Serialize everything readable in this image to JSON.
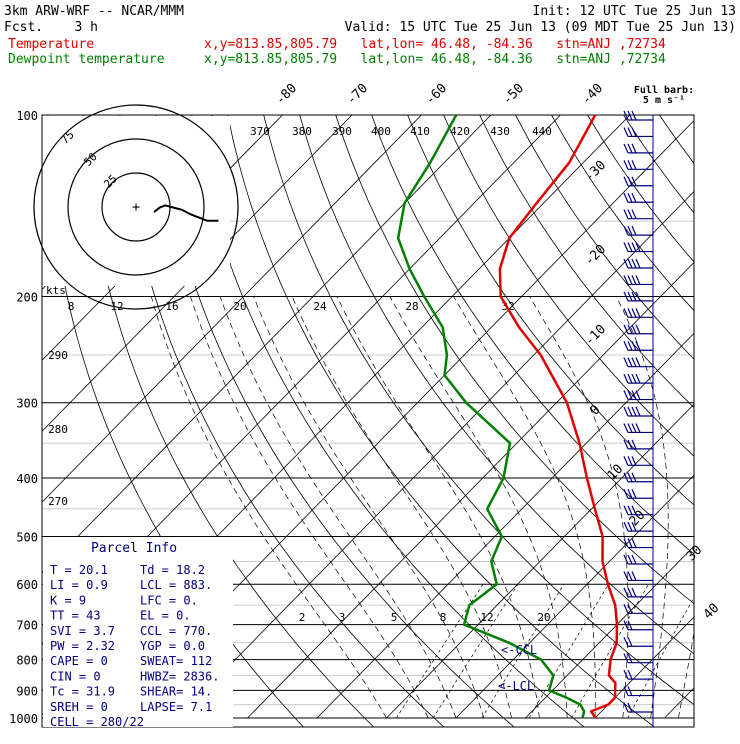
{
  "header": {
    "model": "3km ARW-WRF -- NCAR/MMM",
    "init": "Init: 12 UTC Tue 25 Jun 13",
    "fcst": "Fcst.    3 h",
    "valid": "Valid: 15 UTC Tue 25 Jun 13 (09 MDT Tue 25 Jun 13)",
    "temp_label": "Temperature",
    "temp_loc": "x,y=813.85,805.79   lat,lon= 46.48, -84.36   stn=ANJ ,72734",
    "dew_label": "Dewpoint temperature",
    "dew_loc": "x,y=813.85,805.79   lat,lon= 46.48, -84.36   stn=ANJ ,72734"
  },
  "colors": {
    "temperature": "#e00000",
    "dewpoint": "#008000",
    "panel_text": "#000080",
    "wind": "#000080"
  },
  "barb_legend": {
    "title": "Full barb:",
    "value": "5 m s⁻¹"
  },
  "hodograph": {
    "units": "kts",
    "ring_labels": [
      "25",
      "50",
      "75"
    ]
  },
  "parcel": {
    "title": "Parcel Info",
    "rows": [
      [
        "T  =     20.1",
        "Td =   18.2"
      ],
      [
        "LI =      0.9",
        "LCL =   883."
      ],
      [
        "K  =        9",
        "LFC =     0."
      ],
      [
        "TT =       43",
        "EL  =     0."
      ],
      [
        "SVI =     3.7",
        "CCL =   770."
      ],
      [
        "PW =     2.32",
        "YGP =    0.0"
      ],
      [
        "CAPE =      0",
        "SWEAT=   112"
      ],
      [
        "CIN  =      0",
        "HWBZ= 2836."
      ],
      [
        "Tc =     31.9",
        "SHEAR=   14."
      ],
      [
        "SREH =      0",
        "LAPSE=   7.1"
      ],
      [
        "CELL = 280/22",
        ""
      ]
    ]
  },
  "markers": {
    "ccl": "<-CCL",
    "lcl": "<-LCL"
  },
  "chart_data": {
    "type": "line",
    "title": "",
    "ylabel": "",
    "xlabel": "",
    "y_scale": "log-pressure",
    "pressure_ticks": [
      100,
      200,
      300,
      400,
      500,
      600,
      700,
      800,
      900,
      1000
    ],
    "isotherm_labels": [
      "-80",
      "-70",
      "-60",
      "-50",
      "-40",
      "-30",
      "-20",
      "-10",
      "0",
      "10",
      "20",
      "30",
      "40"
    ],
    "theta_labels": [
      "370",
      "380",
      "390",
      "400",
      "410",
      "420",
      "430",
      "440"
    ],
    "upper_adiabat_labels": [
      "8",
      "12",
      "16",
      "20",
      "24",
      "28",
      "32"
    ],
    "left_theta_labels": [
      "290",
      "280",
      "270"
    ],
    "mixing_ratio_labels": [
      "2",
      "3",
      "5",
      "8",
      "12",
      "20"
    ],
    "series": [
      {
        "name": "Temperature",
        "points": [
          [
            1000,
            20.1
          ],
          [
            975,
            18.5
          ],
          [
            950,
            20
          ],
          [
            925,
            20
          ],
          [
            900,
            19
          ],
          [
            875,
            18
          ],
          [
            850,
            16
          ],
          [
            800,
            14
          ],
          [
            750,
            12.5
          ],
          [
            700,
            10
          ],
          [
            650,
            7
          ],
          [
            600,
            3
          ],
          [
            550,
            -1
          ],
          [
            500,
            -4.5
          ],
          [
            450,
            -9.5
          ],
          [
            400,
            -15
          ],
          [
            350,
            -21
          ],
          [
            300,
            -28.5
          ],
          [
            250,
            -39
          ],
          [
            225,
            -46
          ],
          [
            200,
            -53
          ],
          [
            180,
            -57
          ],
          [
            160,
            -60
          ],
          [
            140,
            -61
          ],
          [
            120,
            -62
          ],
          [
            100,
            -65
          ]
        ]
      },
      {
        "name": "Dewpoint temperature",
        "points": [
          [
            1000,
            18.2
          ],
          [
            975,
            17.5
          ],
          [
            950,
            16
          ],
          [
            925,
            13
          ],
          [
            900,
            9.5
          ],
          [
            850,
            8
          ],
          [
            800,
            4
          ],
          [
            750,
            -3
          ],
          [
            700,
            -12
          ],
          [
            650,
            -14
          ],
          [
            600,
            -13
          ],
          [
            550,
            -17
          ],
          [
            500,
            -19
          ],
          [
            450,
            -25
          ],
          [
            400,
            -27
          ],
          [
            350,
            -31
          ],
          [
            300,
            -43
          ],
          [
            270,
            -50
          ],
          [
            250,
            -52.5
          ],
          [
            225,
            -57
          ],
          [
            200,
            -64
          ],
          [
            180,
            -70
          ],
          [
            160,
            -76
          ],
          [
            140,
            -80
          ],
          [
            120,
            -82
          ],
          [
            100,
            -85
          ]
        ]
      }
    ],
    "wind_barbs_count": 37,
    "hodograph_path": [
      [
        0,
        0
      ],
      [
        2,
        -2
      ],
      [
        4,
        -3
      ],
      [
        7,
        -2
      ],
      [
        10,
        -1
      ],
      [
        13,
        1
      ],
      [
        15,
        2
      ],
      [
        17,
        3
      ],
      [
        19,
        4
      ],
      [
        21,
        4
      ],
      [
        23,
        4
      ]
    ]
  }
}
